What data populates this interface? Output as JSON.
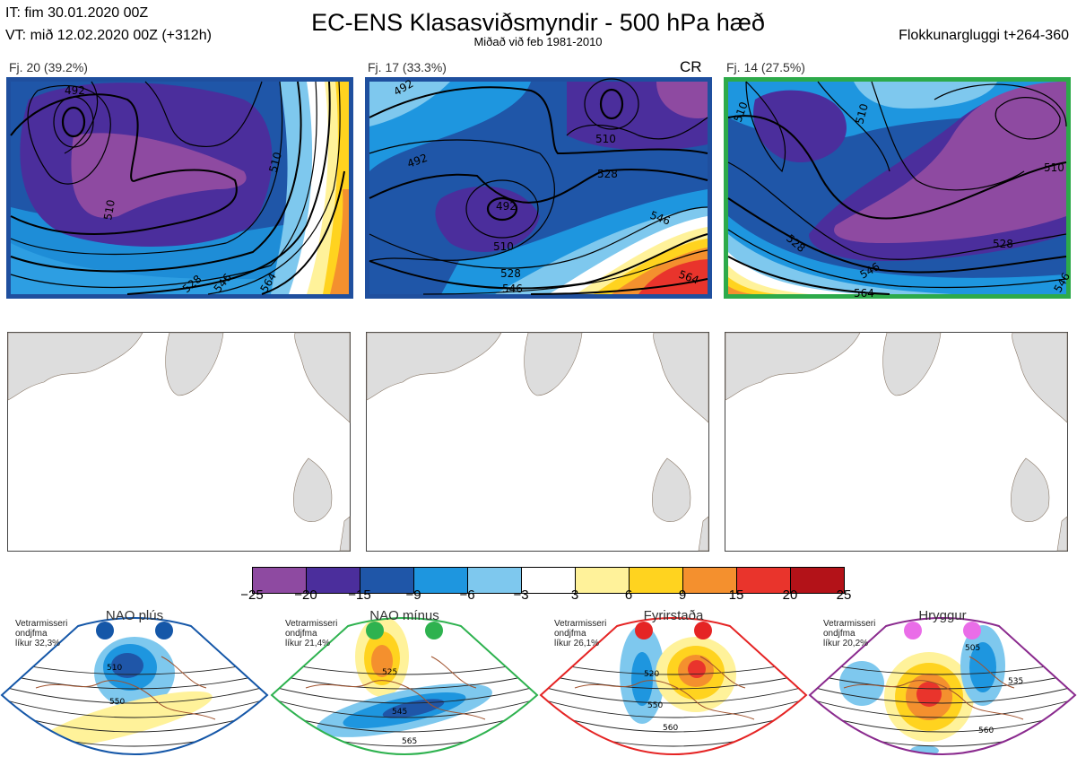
{
  "header": {
    "init_time": "IT: fim 30.01.2020 00Z",
    "valid_time": "VT: mið 12.02.2020 00Z  (+312h)",
    "title": "EC-ENS Klasasviðsmyndir - 500 hPa hæð",
    "subtitle": "Miðað við feb 1981-2010",
    "window": "Flokkunargluggi t+264-360"
  },
  "panels": [
    {
      "label": "Fj. 20 (39.2%)",
      "border_color": "#1f4f9e",
      "extra": ""
    },
    {
      "label": "Fj. 17 (33.3%)",
      "border_color": "#1f4f9e",
      "extra": "CR"
    },
    {
      "label": "Fj. 14 (27.5%)",
      "border_color": "#2daa4a",
      "extra": ""
    }
  ],
  "contour_labels": {
    "p1": [
      "492",
      "510",
      "528",
      "546",
      "564",
      "510"
    ],
    "p2": [
      "492",
      "492",
      "510",
      "528",
      "510",
      "546",
      "528",
      "546",
      "564",
      "492"
    ],
    "p3": [
      "510",
      "510",
      "528",
      "546",
      "564",
      "528",
      "546",
      "510"
    ]
  },
  "colorbar": {
    "ticks": [
      "−25",
      "−20",
      "−15",
      "−9",
      "−6",
      "−3",
      "3",
      "6",
      "9",
      "15",
      "20",
      "25"
    ],
    "colors": [
      "#8e4aa1",
      "#4b2e9c",
      "#1f56a8",
      "#1e96df",
      "#7ec8ee",
      "#ffffff",
      "#fff29a",
      "#ffd31f",
      "#f4902e",
      "#e9342c",
      "#b31218"
    ]
  },
  "regimes": [
    {
      "name": "NAO plús",
      "meta": [
        "Vetrarmisseri",
        "ondjfma",
        "líkur 32,3%"
      ],
      "color": "#1557a8",
      "labels": [
        "510",
        "550"
      ]
    },
    {
      "name": "NAO mínus",
      "meta": [
        "Vetrarmisseri",
        "ondjfma",
        "líkur 21,4%"
      ],
      "color": "#2eb24f",
      "labels": [
        "525",
        "545",
        "565"
      ]
    },
    {
      "name": "Fyrirstaða",
      "meta": [
        "Vetrarmisseri",
        "ondjfma",
        "líkur 26,1%"
      ],
      "color": "#e52424",
      "labels": [
        "520",
        "550",
        "560"
      ]
    },
    {
      "name": "Hryggur",
      "meta": [
        "Vetrarmisseri",
        "ondjfma",
        "líkur 20,2%"
      ],
      "color": "#ea6de8",
      "labels": [
        "505",
        "535",
        "560"
      ]
    }
  ]
}
